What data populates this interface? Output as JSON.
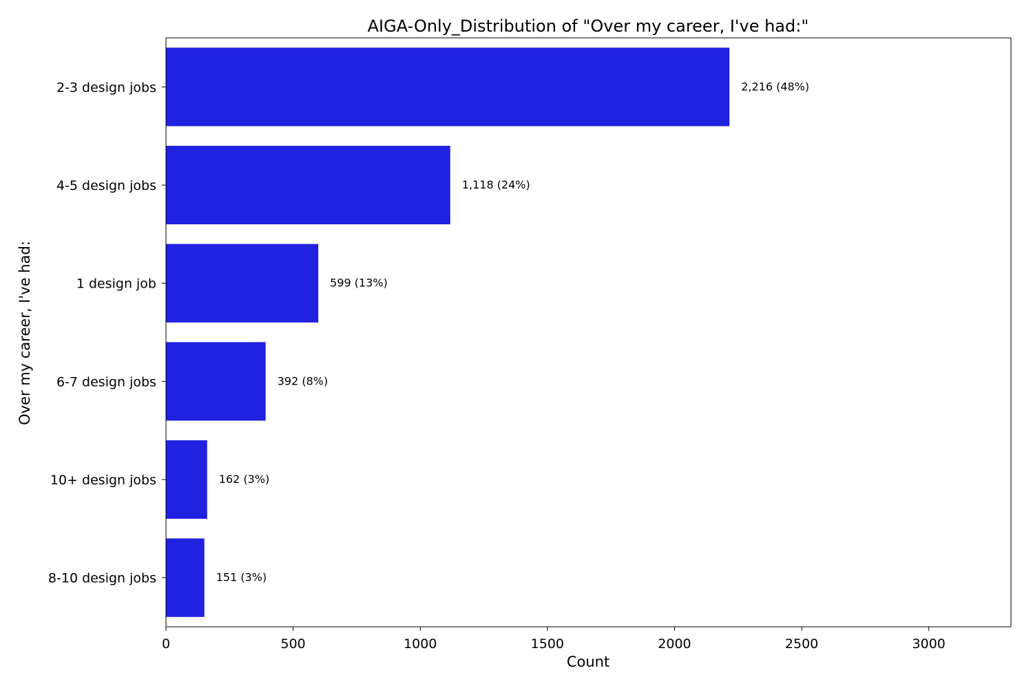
{
  "chart_data": {
    "type": "bar",
    "orientation": "horizontal",
    "title": "AIGA-Only_Distribution of \"Over my career, I've had:\"",
    "xlabel": "Count",
    "ylabel": "Over my career, I've had:",
    "categories": [
      "2-3 design jobs",
      "4-5 design jobs",
      "1 design job",
      "6-7 design jobs",
      "10+ design jobs",
      "8-10 design jobs"
    ],
    "values": [
      2216,
      1118,
      599,
      392,
      162,
      151
    ],
    "data_labels": [
      "2,216 (48%)",
      "1,118 (24%)",
      "599 (13%)",
      "392 (8%)",
      "162 (3%)",
      "151 (3%)"
    ],
    "xlim": [
      0,
      3323
    ],
    "xticks": [
      0,
      500,
      1000,
      1500,
      2000,
      2500,
      3000
    ],
    "grid": false,
    "bar_color": "#2121e0"
  }
}
